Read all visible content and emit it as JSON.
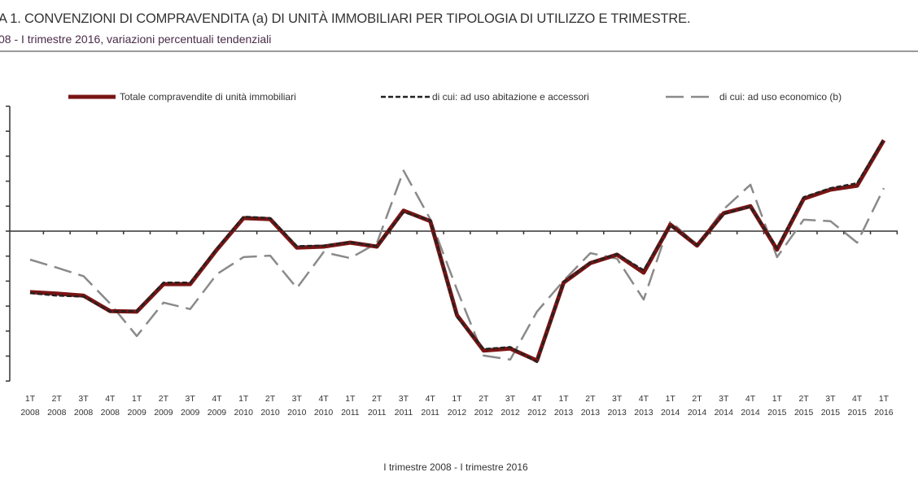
{
  "title": "A 1. CONVENZIONI DI COMPRAVENDITA (a) DI UNITÀ IMMOBILIARI PER TIPOLOGIA DI UTILIZZO E TRIMESTRE.",
  "subtitle": "08 - I trimestre 2016, variazioni percentuali tendenziali",
  "chart_data": {
    "type": "line",
    "xlabel": "I trimestre 2008 - I trimestre 2016",
    "ylabel": "",
    "ylim": [
      -30,
      25
    ],
    "grid": false,
    "legend_placement": "top",
    "categories": [
      [
        "1T",
        "2008"
      ],
      [
        "2T",
        "2008"
      ],
      [
        "3T",
        "2008"
      ],
      [
        "4T",
        "2008"
      ],
      [
        "1T",
        "2009"
      ],
      [
        "2T",
        "2009"
      ],
      [
        "3T",
        "2009"
      ],
      [
        "4T",
        "2009"
      ],
      [
        "1T",
        "2010"
      ],
      [
        "2T",
        "2010"
      ],
      [
        "3T",
        "2010"
      ],
      [
        "4T",
        "2010"
      ],
      [
        "1T",
        "2011"
      ],
      [
        "2T",
        "2011"
      ],
      [
        "3T",
        "2011"
      ],
      [
        "4T",
        "2011"
      ],
      [
        "1T",
        "2012"
      ],
      [
        "2T",
        "2012"
      ],
      [
        "3T",
        "2012"
      ],
      [
        "4T",
        "2012"
      ],
      [
        "1T",
        "2013"
      ],
      [
        "2T",
        "2013"
      ],
      [
        "3T",
        "2013"
      ],
      [
        "4T",
        "2013"
      ],
      [
        "1T",
        "2014"
      ],
      [
        "2T",
        "2014"
      ],
      [
        "3T",
        "2014"
      ],
      [
        "4T",
        "2014"
      ],
      [
        "1T",
        "2015"
      ],
      [
        "2T",
        "2015"
      ],
      [
        "3T",
        "2015"
      ],
      [
        "4T",
        "2015"
      ],
      [
        "1T",
        "2016"
      ]
    ],
    "series": [
      {
        "name": "Totale compravendite di unità immobiliari",
        "color": "#7a1414",
        "style": "solid",
        "values": [
          -12.2,
          -12.5,
          -12.9,
          -16.0,
          -16.1,
          -10.6,
          -10.6,
          -3.7,
          2.6,
          2.4,
          -3.3,
          -3.1,
          -2.3,
          -3.1,
          4.1,
          2.0,
          -16.8,
          -23.9,
          -23.5,
          -25.9,
          -10.3,
          -6.4,
          -4.7,
          -8.3,
          1.3,
          -2.9,
          3.6,
          5.0,
          -3.7,
          6.5,
          8.3,
          9.1,
          18.2
        ]
      },
      {
        "name": "di cui: ad uso abitazione e accessori",
        "color": "#222222",
        "style": "short-dash",
        "values": [
          -12.4,
          -12.9,
          -13.1,
          -16.1,
          -16.0,
          -10.3,
          -10.3,
          -3.5,
          2.9,
          2.6,
          -3.0,
          -2.9,
          -2.2,
          -3.0,
          3.8,
          2.2,
          -17.2,
          -23.6,
          -23.2,
          -26.2,
          -10.2,
          -6.3,
          -4.6,
          -7.8,
          1.2,
          -2.8,
          3.5,
          4.9,
          -3.4,
          6.8,
          8.6,
          9.6,
          18.4
        ]
      },
      {
        "name": "di cui: ad uso economico (b)",
        "color": "#8a8a8a",
        "style": "long-dash",
        "values": [
          -5.7,
          -7.3,
          -9.0,
          -14.5,
          -21.0,
          -14.3,
          -15.6,
          -8.6,
          -5.2,
          -4.9,
          -11.4,
          -4.2,
          -5.4,
          -2.4,
          12.1,
          2.4,
          -11.7,
          -24.9,
          -25.7,
          -16.1,
          -9.9,
          -4.4,
          -5.5,
          -13.7,
          2.0,
          -2.8,
          4.4,
          9.3,
          -5.2,
          2.3,
          2.0,
          -2.3,
          8.6
        ]
      }
    ]
  }
}
